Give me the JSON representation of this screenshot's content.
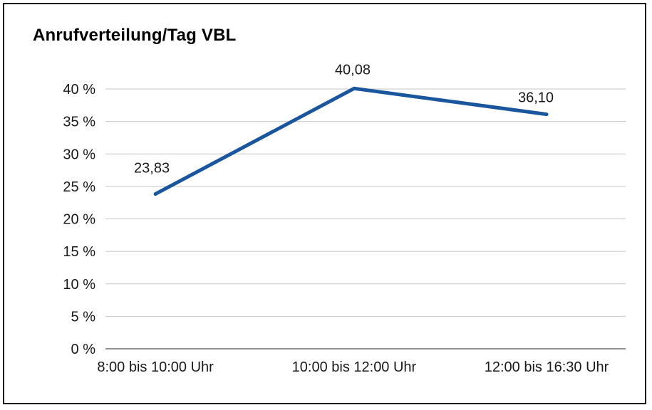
{
  "chart_data": {
    "type": "line",
    "title": "Anrufverteilung/Tag VBL",
    "categories": [
      "8:00 bis 10:00 Uhr",
      "10:00 bis 12:00 Uhr",
      "12:00 bis 16:30 Uhr"
    ],
    "values": [
      23.83,
      40.08,
      36.1
    ],
    "value_labels": [
      "23,83",
      "40,08",
      "36,10"
    ],
    "xlabel": "",
    "ylabel": "",
    "ylim": [
      0,
      40
    ],
    "y_tick_step": 5,
    "y_tick_labels": [
      "0 %",
      "5 %",
      "10 %",
      "15 %",
      "20 %",
      "25 %",
      "30 %",
      "35 %",
      "40 %"
    ],
    "grid": true,
    "legend": "none",
    "colors": {
      "line": "#1a569d",
      "gridline": "#c6c6c6",
      "axis": "#6e6e6e",
      "text": "#1a1a1a",
      "title": "#000000",
      "frame_border": "#1a1a1a"
    }
  }
}
